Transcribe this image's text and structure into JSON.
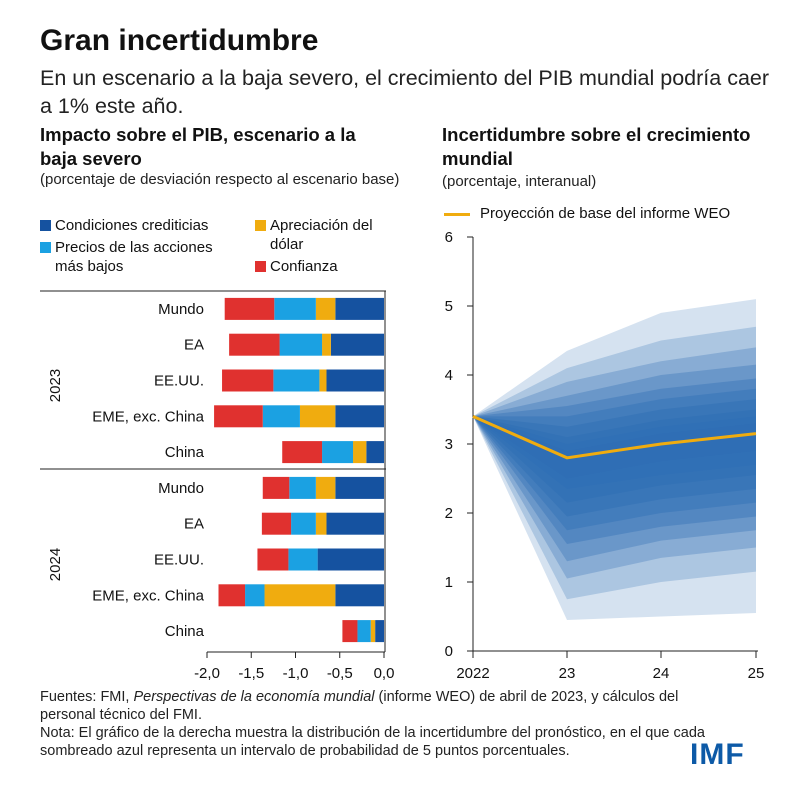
{
  "title": "Gran incertidumbre",
  "subtitle": "En un escenario a la baja severo, el crecimiento del PIB mundial podría caer a 1% este año.",
  "colors": {
    "credit": "#1552a0",
    "equity": "#1ba1e2",
    "dollar": "#f0ac0f",
    "confidence": "#e0312f",
    "baseline": "#f0ac0f",
    "fan": "#2f6eb5"
  },
  "left_panel": {
    "title": "Impacto sobre el PIB, escenario a la baja severo",
    "subtitle": "(porcentaje de desviación respecto al escenario base)",
    "legend": [
      {
        "key": "credit",
        "label": "Condiciones crediticias"
      },
      {
        "key": "equity",
        "label": "Precios de las acciones más bajos"
      },
      {
        "key": "dollar",
        "label": "Apreciación del dólar"
      },
      {
        "key": "confidence",
        "label": "Confianza"
      }
    ]
  },
  "right_panel": {
    "title": "Incertidumbre sobre el crecimiento mundial",
    "subtitle": "(porcentaje, interanual)",
    "legend_label": "Proyección de base del informe WEO"
  },
  "chart_data": [
    {
      "type": "bar",
      "orientation": "horizontal",
      "stacked": true,
      "title": "Impacto sobre el PIB, escenario a la baja severo",
      "xlabel": "",
      "ylabel": "",
      "xlim": [
        -2.0,
        0.0
      ],
      "xticks": [
        "-2,0",
        "-1,5",
        "-1,0",
        "-0,5",
        "0,0"
      ],
      "groups": [
        {
          "label": "2023",
          "categories": [
            "Mundo",
            "EA",
            "EE.UU.",
            "EME, exc. China",
            "China"
          ]
        },
        {
          "label": "2024",
          "categories": [
            "Mundo",
            "EA",
            "EE.UU.",
            "EME, exc. China",
            "China"
          ]
        }
      ],
      "series": [
        {
          "name": "Condiciones crediticias",
          "key": "credit",
          "values": [
            -0.55,
            -0.6,
            -0.65,
            -0.55,
            -0.2,
            -0.55,
            -0.65,
            -0.75,
            -0.55,
            -0.1
          ]
        },
        {
          "name": "Apreciación del dólar",
          "key": "dollar",
          "values": [
            -0.22,
            -0.1,
            -0.08,
            -0.4,
            -0.15,
            -0.22,
            -0.12,
            0.0,
            -0.8,
            -0.05
          ]
        },
        {
          "name": "Precios de las acciones más bajos",
          "key": "equity",
          "values": [
            -0.47,
            -0.48,
            -0.52,
            -0.42,
            -0.35,
            -0.3,
            -0.28,
            -0.33,
            -0.22,
            -0.15
          ]
        },
        {
          "name": "Confianza",
          "key": "confidence",
          "values": [
            -0.56,
            -0.57,
            -0.58,
            -0.55,
            -0.45,
            -0.3,
            -0.33,
            -0.35,
            -0.3,
            -0.17
          ]
        }
      ]
    },
    {
      "type": "area",
      "title": "Incertidumbre sobre el crecimiento mundial",
      "xlabel": "",
      "ylabel": "",
      "x": [
        "2022",
        "23",
        "24",
        "25"
      ],
      "ylim": [
        0,
        6
      ],
      "yticks": [
        0,
        1,
        2,
        3,
        4,
        5,
        6
      ],
      "baseline": {
        "name": "Proyección de base del informe WEO",
        "values": [
          3.4,
          2.8,
          3.0,
          3.15
        ]
      },
      "bands": [
        {
          "low": [
            3.4,
            0.45,
            0.5,
            0.55
          ],
          "high": [
            3.4,
            4.35,
            4.9,
            5.1
          ]
        },
        {
          "low": [
            3.4,
            0.75,
            1.0,
            1.15
          ],
          "high": [
            3.4,
            4.1,
            4.5,
            4.7
          ]
        },
        {
          "low": [
            3.4,
            1.05,
            1.35,
            1.5
          ],
          "high": [
            3.4,
            3.9,
            4.2,
            4.4
          ]
        },
        {
          "low": [
            3.4,
            1.3,
            1.6,
            1.75
          ],
          "high": [
            3.4,
            3.7,
            4.0,
            4.15
          ]
        },
        {
          "low": [
            3.4,
            1.55,
            1.8,
            1.95
          ],
          "high": [
            3.4,
            3.55,
            3.8,
            3.95
          ]
        },
        {
          "low": [
            3.4,
            1.75,
            2.0,
            2.15
          ],
          "high": [
            3.4,
            3.4,
            3.65,
            3.8
          ]
        },
        {
          "low": [
            3.4,
            1.95,
            2.2,
            2.35
          ],
          "high": [
            3.4,
            3.25,
            3.5,
            3.65
          ]
        },
        {
          "low": [
            3.4,
            2.15,
            2.4,
            2.55
          ],
          "high": [
            3.4,
            3.1,
            3.35,
            3.5
          ]
        },
        {
          "low": [
            3.4,
            2.35,
            2.55,
            2.7
          ],
          "high": [
            3.4,
            3.0,
            3.25,
            3.4
          ]
        },
        {
          "low": [
            3.4,
            2.5,
            2.75,
            2.9
          ],
          "high": [
            3.4,
            2.9,
            3.15,
            3.3
          ]
        }
      ]
    }
  ],
  "source_prefix": "Fuentes: FMI, ",
  "source_italic": "Perspectivas de la economía mundial",
  "source_suffix": " (informe WEO) de abril de 2023, y cálculos del personal técnico del FMI.",
  "note": "Nota: El gráfico de la derecha muestra la distribución de la incertidumbre del pronóstico, en el que cada sombreado azul representa un intervalo de probabilidad de 5 puntos porcentuales.",
  "logo_text": "IMF"
}
